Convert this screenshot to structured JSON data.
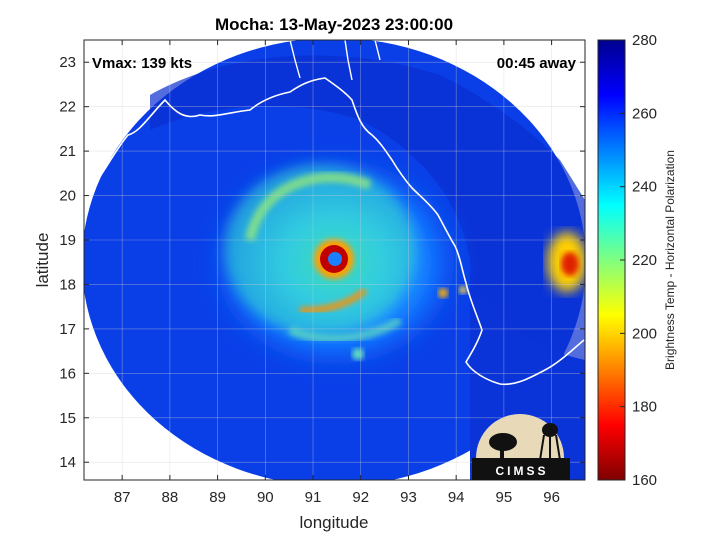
{
  "title": "Mocha: 13-May-2023 23:00:00",
  "annotations": {
    "vmax": "Vmax: 139 kts",
    "eta": "00:45 away"
  },
  "map": {
    "xlabel": "longitude",
    "ylabel": "latitude",
    "xlim": [
      86.2,
      96.7
    ],
    "ylim": [
      13.6,
      23.5
    ],
    "xticks": [
      87,
      88,
      89,
      90,
      91,
      92,
      93,
      94,
      95,
      96
    ],
    "yticks": [
      14,
      15,
      16,
      17,
      18,
      19,
      20,
      21,
      22,
      23
    ],
    "grid": true,
    "eye_center": [
      91.45,
      18.55
    ]
  },
  "colorbar": {
    "label": "Brightness Temp - Horizontal Polarization",
    "range": [
      160,
      280
    ],
    "ticks": [
      160,
      180,
      200,
      220,
      240,
      260,
      280
    ],
    "colormap": [
      "#7f0000",
      "#ff0000",
      "#ff8000",
      "#ffff00",
      "#80ff80",
      "#00ffff",
      "#0080ff",
      "#0000ff",
      "#00008f"
    ]
  },
  "logo": {
    "text": "CIMSS"
  }
}
